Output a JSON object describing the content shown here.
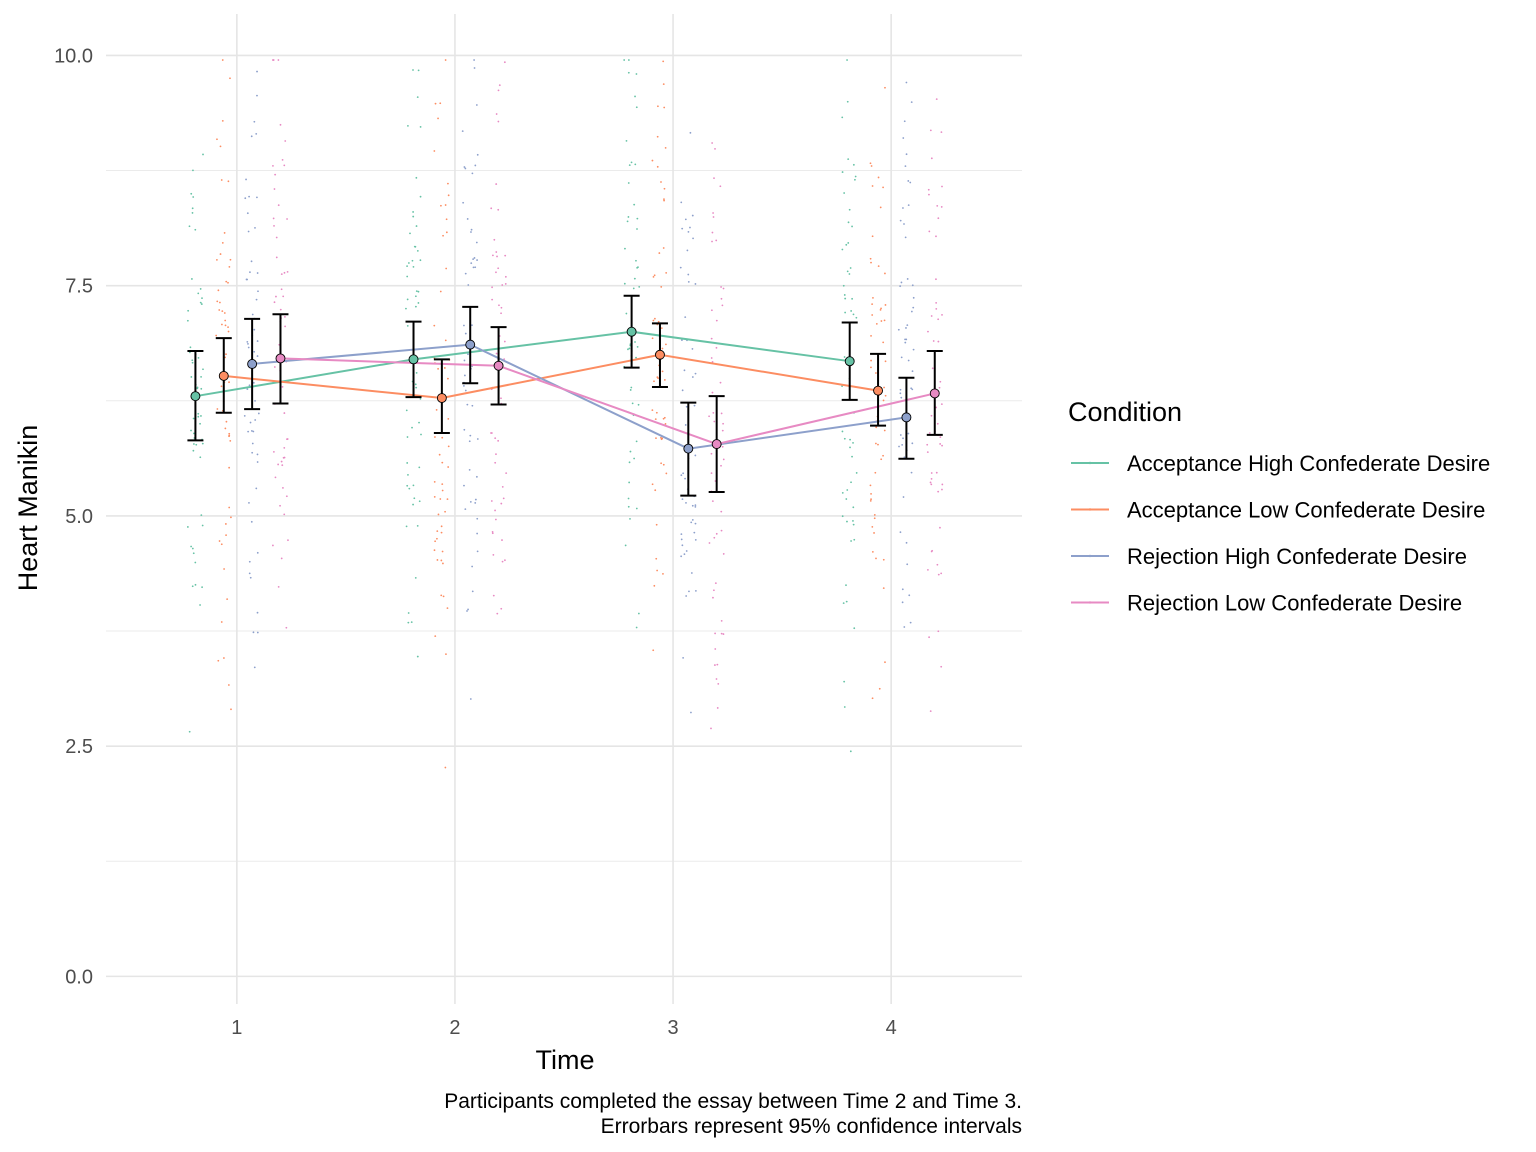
{
  "chart_data": {
    "type": "line",
    "xlabel": "Time",
    "ylabel": "Heart Manikin",
    "x": [
      1,
      2,
      3,
      4
    ],
    "x_tick_labels": [
      "1",
      "2",
      "3",
      "4"
    ],
    "xlim": [
      0.4,
      4.6
    ],
    "y_ticks": [
      0.0,
      2.5,
      5.0,
      7.5,
      10.0
    ],
    "y_tick_labels": [
      "0.0",
      "2.5",
      "5.0",
      "7.5",
      "10.0"
    ],
    "ylim": [
      -0.3,
      10.45
    ],
    "grid": true,
    "legend": {
      "title": "Condition",
      "placement": "right"
    },
    "caption": [
      "Participants completed the essay between Time 2 and Time 3.",
      "Errorbars represent 95% confidence intervals"
    ],
    "series": [
      {
        "name": "Acceptance High Confederate Desire",
        "color": "#66c2a5",
        "dodge": -0.19,
        "values": [
          6.3,
          6.7,
          7.0,
          6.68
        ],
        "ci_low": [
          5.82,
          6.29,
          6.61,
          6.26
        ],
        "ci_high": [
          6.79,
          7.11,
          7.39,
          7.1
        ]
      },
      {
        "name": "Acceptance Low Confederate Desire",
        "color": "#fc8d62",
        "dodge": -0.06,
        "values": [
          6.52,
          6.28,
          6.75,
          6.36
        ],
        "ci_low": [
          6.12,
          5.9,
          6.4,
          5.98
        ],
        "ci_high": [
          6.93,
          6.7,
          7.09,
          6.76
        ]
      },
      {
        "name": "Rejection High Confederate Desire",
        "color": "#8da0cb",
        "dodge": 0.07,
        "values": [
          6.65,
          6.86,
          5.73,
          6.07
        ],
        "ci_low": [
          6.16,
          6.44,
          5.22,
          5.62
        ],
        "ci_high": [
          7.14,
          7.27,
          6.23,
          6.5
        ]
      },
      {
        "name": "Rejection Low Confederate Desire",
        "color": "#e78ac3",
        "dodge": 0.2,
        "values": [
          6.71,
          6.63,
          5.78,
          6.33
        ],
        "ci_low": [
          6.22,
          6.21,
          5.26,
          5.88
        ],
        "ci_high": [
          7.19,
          7.05,
          6.3,
          6.79
        ]
      }
    ]
  }
}
